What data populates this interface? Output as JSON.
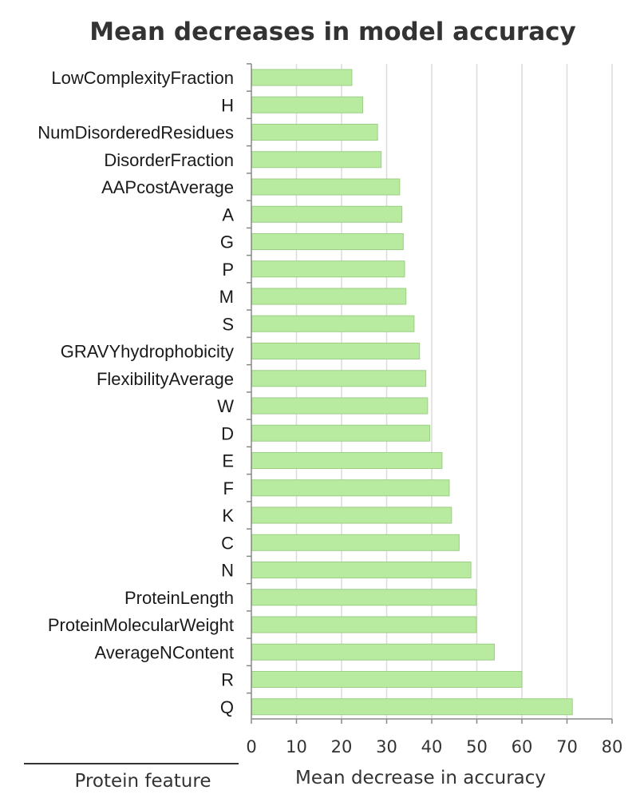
{
  "chart_data": {
    "type": "bar",
    "orientation": "horizontal",
    "title": "Mean decreases in model accuracy",
    "xlabel": "Mean decrease in accuracy",
    "ylabel": "Protein feature",
    "xlim": [
      0,
      80
    ],
    "xticks": [
      0,
      10,
      20,
      30,
      40,
      50,
      60,
      70,
      80
    ],
    "grid": true,
    "colors": {
      "bar": "#b8eaa0",
      "bar_border": "#9ccf86",
      "grid": "#dcdcdc"
    },
    "categories": [
      "LowComplexityFraction",
      "H",
      "NumDisorderedResidues",
      "DisorderFraction",
      "AAPcostAverage",
      "A",
      "G",
      "P",
      "M",
      "S",
      "GRAVYhydrophobicity",
      "FlexibilityAverage",
      "W",
      "D",
      "E",
      "F",
      "K",
      "C",
      "N",
      "ProteinLength",
      "ProteinMolecularWeight",
      "AverageNContent",
      "R",
      "Q"
    ],
    "values": [
      22.2,
      24.6,
      27.9,
      28.7,
      32.8,
      33.3,
      33.6,
      33.9,
      34.2,
      36.0,
      37.2,
      38.6,
      39.0,
      39.5,
      42.2,
      43.8,
      44.3,
      46.0,
      48.6,
      49.8,
      49.8,
      53.8,
      59.9,
      71.1
    ]
  }
}
